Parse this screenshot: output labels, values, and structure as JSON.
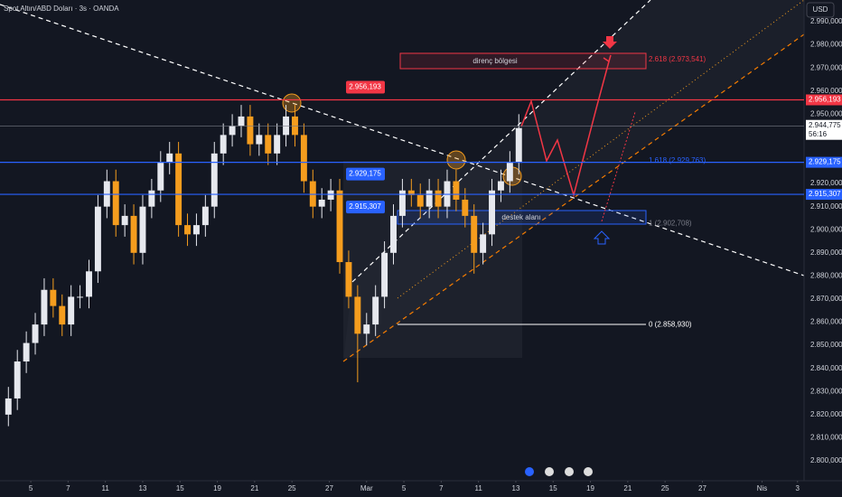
{
  "chart_data": {
    "type": "candlestick",
    "title": "Spot Altın/ABD Doları · 3s · OANDA",
    "currency": "USD",
    "up_color": "#e6e8ee",
    "down_color": "#f59d1e",
    "x": [
      -1.2,
      -0.72,
      -0.24,
      0.24,
      0.72,
      1.2,
      1.68,
      2.16,
      2.64,
      3.12,
      3.6,
      4.08,
      4.56,
      5.04,
      5.52,
      6,
      6.48,
      6.96,
      7.44,
      7.92,
      8.4,
      8.88,
      9.36,
      9.84,
      10.32,
      10.8,
      11.28,
      11.76,
      12.24,
      12.72,
      13.2,
      13.68,
      14.16,
      14.64,
      15.12,
      15.6,
      16.08,
      16.56,
      17.04,
      17.52,
      18,
      18.48,
      18.96,
      19.44,
      19.92,
      20.4,
      20.88,
      21.36,
      21.84,
      22.32,
      22.8,
      23.28,
      23.76,
      24.24,
      24.72,
      25.2,
      25.68,
      26.16
    ],
    "open": [
      2820,
      2827,
      2843,
      2851,
      2859,
      2874,
      2867,
      2859,
      2871,
      2871,
      2882,
      2910,
      2921,
      2902,
      2906,
      2890,
      2910,
      2917,
      2929,
      2933,
      2902,
      2898,
      2902,
      2910,
      2933,
      2941,
      2945,
      2949,
      2937,
      2941,
      2933,
      2941,
      2949,
      2941,
      2921,
      2910,
      2913,
      2917,
      2886,
      2871,
      2855,
      2859,
      2871,
      2890,
      2906,
      2917,
      2915,
      2910,
      2917,
      2910,
      2921,
      2913,
      2906,
      2890,
      2898,
      2917,
      2921,
      2929
    ],
    "high": [
      2832,
      2848,
      2856,
      2864,
      2879,
      2879,
      2872,
      2876,
      2876,
      2887,
      2915,
      2926,
      2926,
      2911,
      2911,
      2915,
      2922,
      2934,
      2938,
      2938,
      2907,
      2907,
      2915,
      2938,
      2946,
      2950,
      2954,
      2954,
      2946,
      2946,
      2946,
      2954,
      2954,
      2946,
      2926,
      2918,
      2922,
      2922,
      2891,
      2876,
      2864,
      2876,
      2895,
      2911,
      2922,
      2922,
      2920,
      2922,
      2922,
      2926,
      2926,
      2918,
      2911,
      2903,
      2922,
      2926,
      2934,
      2950
    ],
    "low": [
      2815,
      2822,
      2838,
      2846,
      2854,
      2862,
      2854,
      2854,
      2866,
      2866,
      2877,
      2905,
      2897,
      2897,
      2885,
      2885,
      2905,
      2912,
      2924,
      2897,
      2893,
      2893,
      2897,
      2905,
      2928,
      2936,
      2940,
      2932,
      2932,
      2928,
      2928,
      2936,
      2936,
      2916,
      2905,
      2905,
      2908,
      2881,
      2866,
      2834,
      2850,
      2854,
      2866,
      2885,
      2901,
      2910,
      2905,
      2905,
      2905,
      2905,
      2908,
      2901,
      2881,
      2885,
      2893,
      2912,
      2916,
      2924
    ],
    "close": [
      2827,
      2843,
      2851,
      2859,
      2874,
      2867,
      2859,
      2871,
      2871,
      2882,
      2910,
      2921,
      2902,
      2906,
      2890,
      2910,
      2917,
      2929,
      2933,
      2902,
      2898,
      2902,
      2910,
      2933,
      2941,
      2945,
      2949,
      2937,
      2941,
      2933,
      2941,
      2949,
      2941,
      2921,
      2910,
      2913,
      2917,
      2886,
      2871,
      2855,
      2859,
      2871,
      2890,
      2906,
      2917,
      2915,
      2910,
      2917,
      2910,
      2921,
      2913,
      2906,
      2890,
      2898,
      2917,
      2921,
      2929,
      2944
    ],
    "xlim": [
      -1.65,
      41.45
    ],
    "ylim": [
      2791.4,
      2999.4
    ],
    "xticks": [
      {
        "value": 0,
        "label": "5"
      },
      {
        "value": 2,
        "label": "7"
      },
      {
        "value": 4,
        "label": "11"
      },
      {
        "value": 6,
        "label": "13"
      },
      {
        "value": 8,
        "label": "15"
      },
      {
        "value": 10,
        "label": "19"
      },
      {
        "value": 12,
        "label": "21"
      },
      {
        "value": 14,
        "label": "25"
      },
      {
        "value": 16,
        "label": "27"
      },
      {
        "value": 18,
        "label": "Mar"
      },
      {
        "value": 20,
        "label": "5"
      },
      {
        "value": 22,
        "label": "7"
      },
      {
        "value": 24,
        "label": "11"
      },
      {
        "value": 26,
        "label": "13"
      },
      {
        "value": 28,
        "label": "15"
      },
      {
        "value": 30,
        "label": "19"
      },
      {
        "value": 32,
        "label": "21"
      },
      {
        "value": 34,
        "label": "25"
      },
      {
        "value": 36,
        "label": "27"
      },
      {
        "value": 39.2,
        "label": "Nis"
      },
      {
        "value": 41.1,
        "label": "3"
      }
    ],
    "yticks": [
      {
        "value": 2990,
        "label": "2.990,000"
      },
      {
        "value": 2980,
        "label": "2.980,000"
      },
      {
        "value": 2970,
        "label": "2.970,000"
      },
      {
        "value": 2960,
        "label": "2.960,000"
      },
      {
        "value": 2950,
        "label": "2.950,000"
      },
      {
        "value": 2920,
        "label": "2.920,000"
      },
      {
        "value": 2910,
        "label": "2.910,000"
      },
      {
        "value": 2900,
        "label": "2.900,000"
      },
      {
        "value": 2890,
        "label": "2.890,000"
      },
      {
        "value": 2880,
        "label": "2.880,000"
      },
      {
        "value": 2870,
        "label": "2.870,000"
      },
      {
        "value": 2860,
        "label": "2.860,000"
      },
      {
        "value": 2850,
        "label": "2.850,000"
      },
      {
        "value": 2840,
        "label": "2.840,000"
      },
      {
        "value": 2830,
        "label": "2.830,000"
      },
      {
        "value": 2820,
        "label": "2.820,000"
      },
      {
        "value": 2810,
        "label": "2.810,000"
      },
      {
        "value": 2800,
        "label": "2.800,000"
      }
    ],
    "grid": false,
    "price_levels": [
      {
        "value": 2956.193,
        "label": "2.956,193",
        "color": "#f23645"
      },
      {
        "value": 2929.175,
        "label": "2.929,175",
        "color": "#2962ff"
      },
      {
        "value": 2915.307,
        "label": "2.915,307",
        "color": "#2962ff"
      }
    ],
    "current_price": {
      "value": 2944.775,
      "label": "2.944,775",
      "countdown": "56:16"
    },
    "fib_levels": [
      {
        "value": 2973.541,
        "label": "2.618 (2.973,541)",
        "color": "#f23645"
      },
      {
        "value": 2929.763,
        "label": "1.618 (2.929,763)",
        "color": "#2962ff"
      },
      {
        "value": 2902.708,
        "label": "1 (2.902,708)",
        "color": "#787b86"
      },
      {
        "value": 2858.93,
        "label": "0 (2.858,930)",
        "color": "#ffffff"
      }
    ],
    "zones": [
      {
        "label": "direnç bölgesi"
      },
      {
        "label": "destek alanı"
      }
    ]
  }
}
